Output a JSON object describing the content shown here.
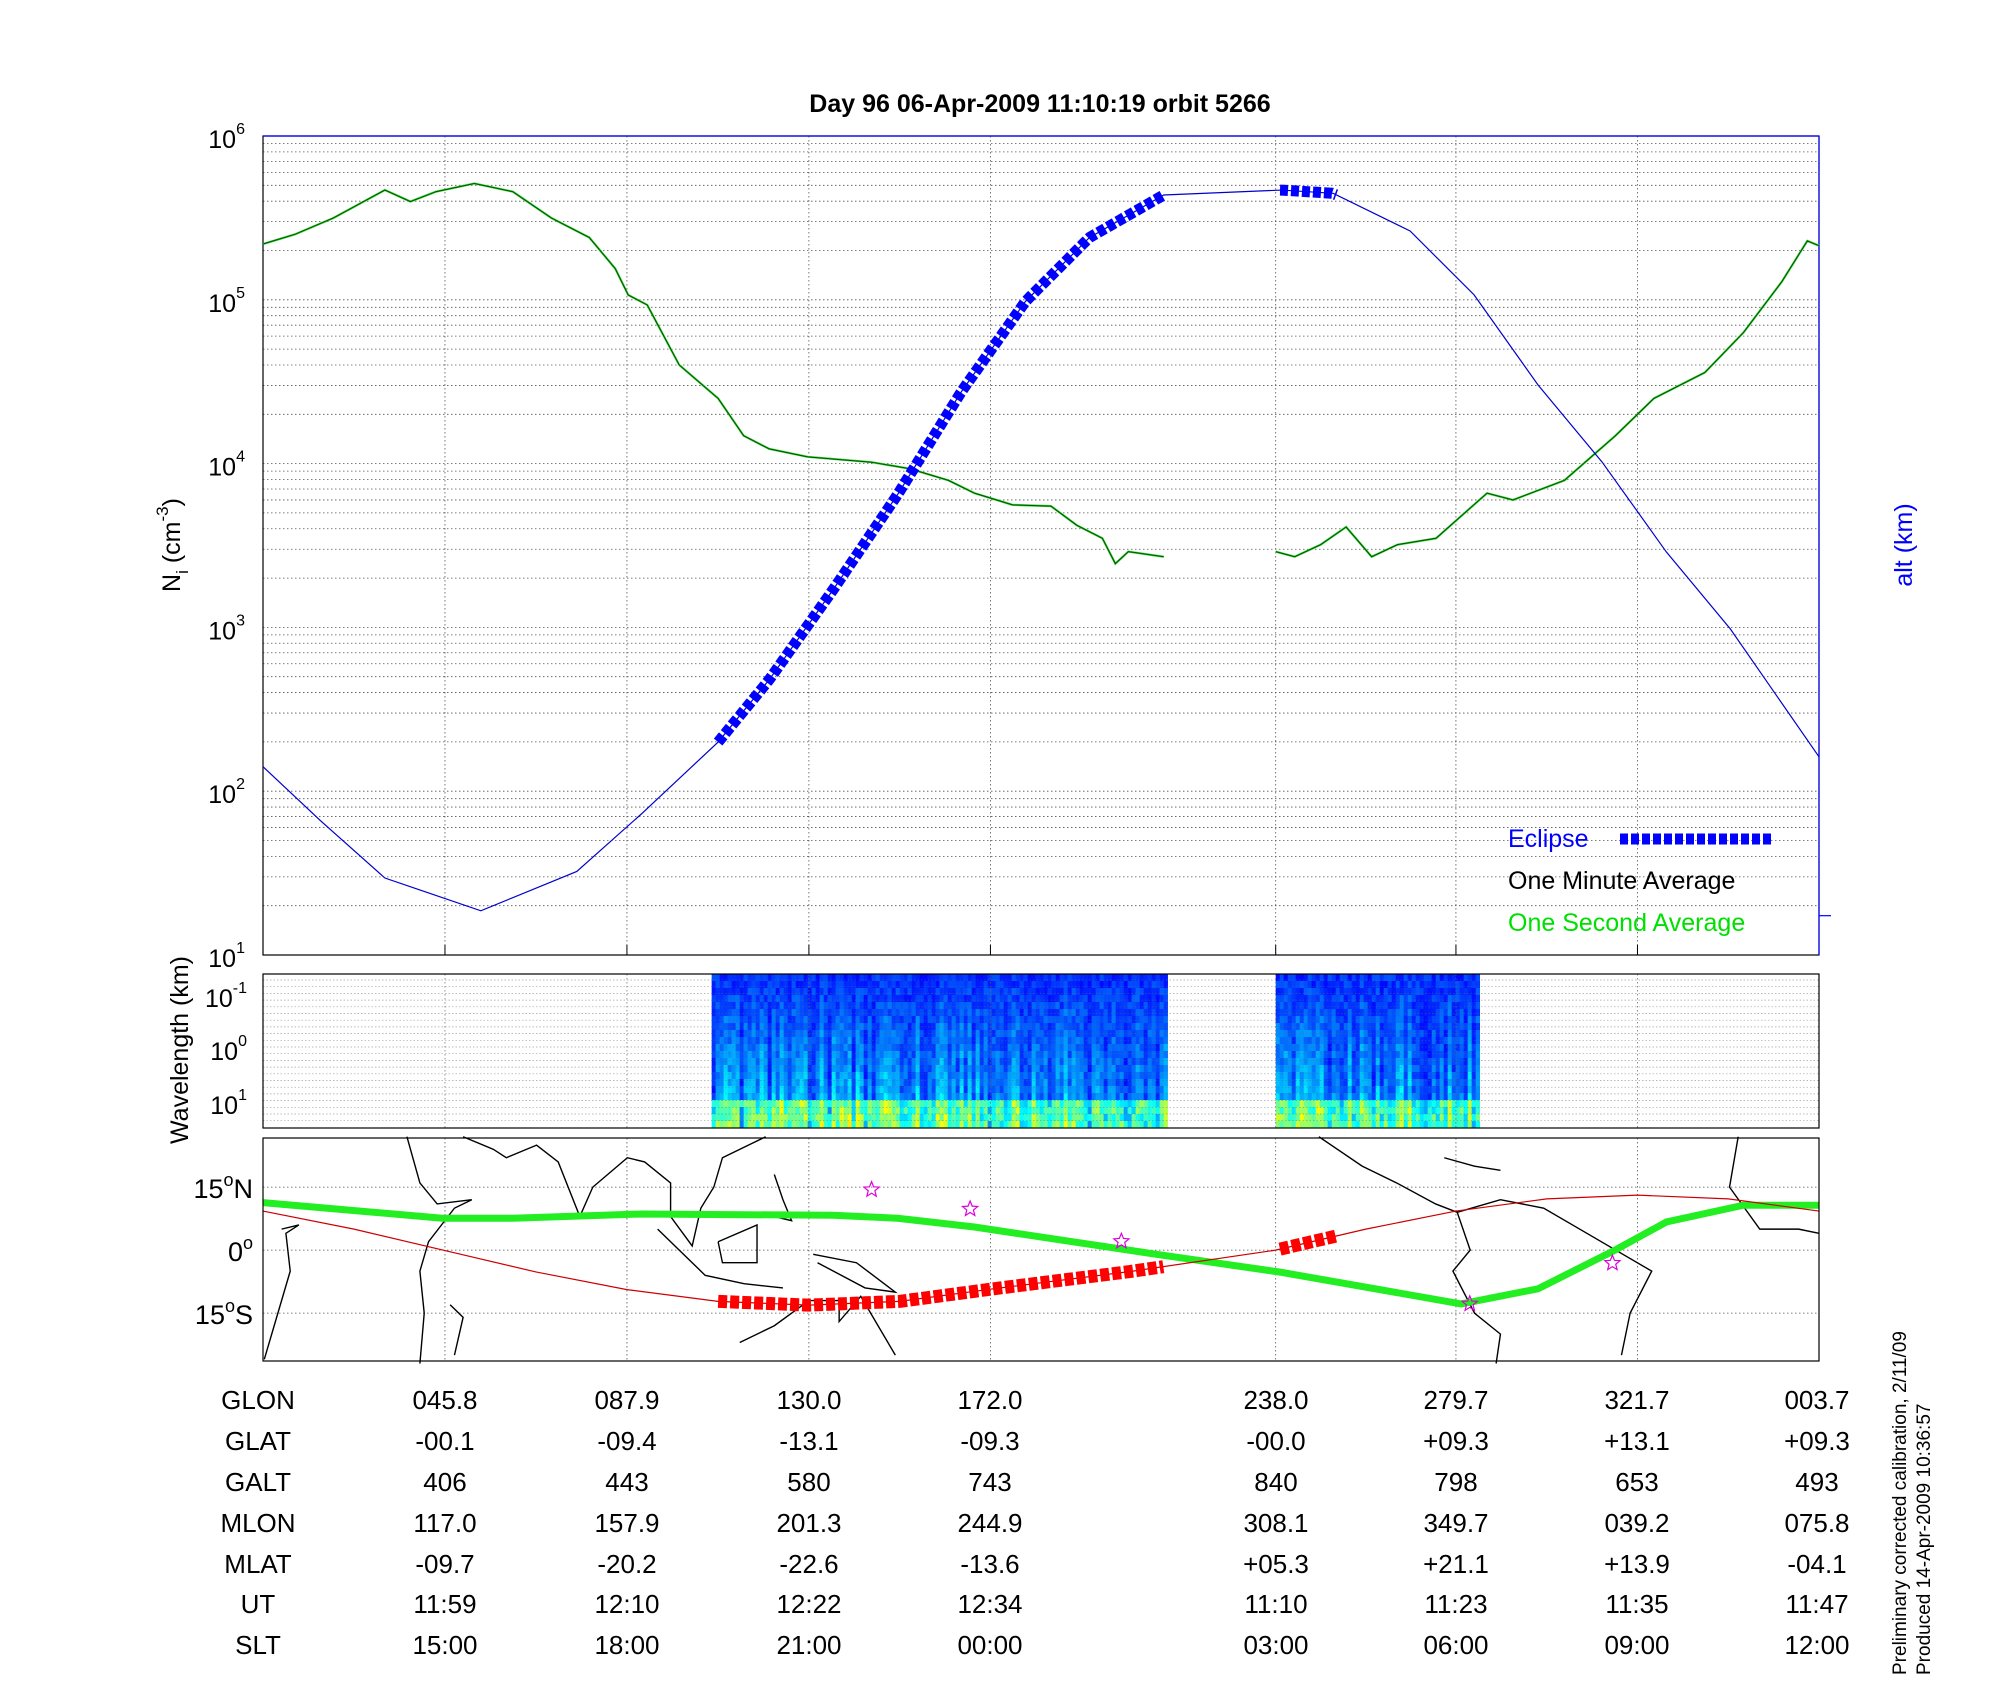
{
  "chart_data": [
    {
      "type": "line",
      "title": "Day 96  06-Apr-2009 11:10:19   orbit 5266",
      "xlabel": "",
      "xlim": [
        3.7,
        363.7
      ],
      "x_ticks": [
        45.8,
        87.9,
        130.0,
        172.0,
        238.0,
        279.7,
        321.7,
        363.7
      ],
      "ylabel_left": "N",
      "ylabel_left_sub": "i",
      "ylabel_left_unit": "(cm",
      "ylabel_left_unit_exp": "-3",
      "ylabel_left_close": ")",
      "ylabel_right": "alt (km)",
      "yscale_left": "log",
      "ylim_left": [
        10,
        1000000
      ],
      "y_ticks_left": [
        {
          "base": "10",
          "exp": "1"
        },
        {
          "base": "10",
          "exp": "2"
        },
        {
          "base": "10",
          "exp": "3"
        },
        {
          "base": "10",
          "exp": "4"
        },
        {
          "base": "10",
          "exp": "5"
        },
        {
          "base": "10",
          "exp": "6"
        }
      ],
      "ylim_right": [
        376,
        876
      ],
      "y_ticks_right": [
        400,
        450,
        500,
        550,
        600,
        650,
        700,
        750,
        800,
        850
      ],
      "grid": true,
      "legend_placement": "bottom-right",
      "legend": [
        {
          "label": "Eclipse",
          "color": "#0000ff"
        },
        {
          "label": "One Minute Average",
          "color": "#000000"
        },
        {
          "label": "One Second Average",
          "color": "#00e000"
        }
      ],
      "series": [
        {
          "key": "density",
          "color": "#0a6a0a",
          "segments": [
            {
              "x": [
                3.7,
                11.1,
                20.0,
                31.9,
                37.8,
                43.7,
                52.6,
                61.5,
                70.4,
                79.2,
                85.2,
                88.2,
                92.6,
                100.0,
                109.0,
                114.9,
                120.8,
                129.7,
                144.5,
                153.4,
                162.3,
                168.3,
                177.1,
                186.0,
                192.0,
                197.9,
                200.9,
                203.9,
                212.1
              ],
              "y": [
                219000,
                251000,
                316000,
                468000,
                398000,
                457000,
                513000,
                457000,
                316000,
                240000,
                155000,
                107000,
                93000,
                40000,
                25000,
                14800,
                12300,
                11000,
                10200,
                9300,
                7900,
                6600,
                5600,
                5500,
                4200,
                3500,
                2450,
                2900,
                2700
              ]
            },
            {
              "x": [
                238.0,
                242.4,
                248.4,
                254.3,
                260.2,
                266.2,
                275.1,
                286.9,
                292.9,
                304.8,
                316.6,
                325.5,
                337.3,
                346.2,
                355.1,
                361.0,
                363.7
              ],
              "y": [
                2900,
                2700,
                3200,
                4100,
                2700,
                3200,
                3500,
                6600,
                6000,
                7900,
                14800,
                25000,
                36000,
                63000,
                129000,
                229000,
                214000
              ]
            }
          ]
        },
        {
          "key": "altitude",
          "axis": "right",
          "color": "#0000cc",
          "x": [
            3.7,
            17.0,
            31.9,
            54.1,
            76.3,
            91.2,
            109.0,
            120.8,
            135.6,
            150.5,
            165.3,
            180.1,
            194.9,
            212.1,
            239.4,
            251.3,
            269.1,
            283.9,
            298.7,
            313.5,
            328.4,
            343.2,
            363.7
          ],
          "y": [
            491,
            458,
            423,
            403,
            427,
            462,
            506,
            544,
            599,
            657,
            720,
            775,
            814,
            840,
            843,
            841,
            818,
            779,
            724,
            677,
            622,
            575,
            497
          ]
        }
      ],
      "eclipse_ranges": [
        [
          109.0,
          212.1
        ],
        [
          239.0,
          252.5
        ]
      ]
    },
    {
      "type": "heatmap",
      "ylabel": "Wavelength (km)",
      "y_ticks": [
        {
          "base": "10",
          "exp": "-1"
        },
        {
          "base": "10",
          "exp": "0"
        },
        {
          "base": "10",
          "exp": "1"
        }
      ],
      "yscale": "log",
      "data_ranges": [
        [
          107.5,
          212.7
        ],
        [
          238.0,
          284.8
        ]
      ],
      "colormap": "jet"
    },
    {
      "type": "line",
      "ylim": [
        -26.4,
        26.7
      ],
      "y_ticks": [
        {
          "value": 15,
          "label": "15",
          "hemi": "N"
        },
        {
          "value": 0,
          "label": "0",
          "hemi": ""
        },
        {
          "value": -15,
          "label": "15",
          "hemi": "S"
        }
      ],
      "degree_symbol": "o",
      "magnetic_equator": {
        "color": "#22ee22",
        "x": [
          3.7,
          45.2,
          61.5,
          91.2,
          135.6,
          150.5,
          168.3,
          209.8,
          239.4,
          280.9,
          298.7,
          316.5,
          328.4,
          346.2,
          363.7
        ],
        "y": [
          11.3,
          7.6,
          7.6,
          8.6,
          8.3,
          7.6,
          5.5,
          -0.9,
          -5.3,
          -12.8,
          -9.2,
          0,
          6.7,
          10.7,
          10.7
        ]
      },
      "orbit_track": {
        "color": "#cc0000",
        "x": [
          3.7,
          24.75,
          45.8,
          66.85,
          87.9,
          108.95,
          130.0,
          151.0,
          172.0,
          205.0,
          238.0,
          258.85,
          279.7,
          300.7,
          321.7,
          342.7,
          363.7
        ],
        "y": [
          9.3,
          5.0,
          -0.1,
          -5.2,
          -9.4,
          -12.2,
          -13.1,
          -12.2,
          -9.3,
          -5.0,
          0.0,
          5.0,
          9.3,
          12.2,
          13.1,
          12.2,
          9.3
        ]
      },
      "eclipse_color": "#ff0000",
      "stars": {
        "color": "#dd00dd",
        "x": [
          144.5,
          167.3,
          202.3,
          282.9,
          315.9
        ],
        "y": [
          14.4,
          9.8,
          2.1,
          -12.8,
          -3.1
        ]
      }
    }
  ],
  "table": {
    "rows": [
      {
        "label": "GLON",
        "values": [
          "045.8",
          "087.9",
          "130.0",
          "172.0",
          "238.0",
          "279.7",
          "321.7",
          "003.7"
        ]
      },
      {
        "label": "GLAT",
        "values": [
          "-00.1",
          "-09.4",
          "-13.1",
          "-09.3",
          "-00.0",
          "+09.3",
          "+13.1",
          "+09.3"
        ]
      },
      {
        "label": "GALT",
        "values": [
          "406",
          "443",
          "580",
          "743",
          "840",
          "798",
          "653",
          "493"
        ]
      },
      {
        "label": "MLON",
        "values": [
          "117.0",
          "157.9",
          "201.3",
          "244.9",
          "308.1",
          "349.7",
          "039.2",
          "075.8"
        ]
      },
      {
        "label": "MLAT",
        "values": [
          "-09.7",
          "-20.2",
          "-22.6",
          "-13.6",
          "+05.3",
          "+21.1",
          "+13.9",
          "-04.1"
        ]
      },
      {
        "label": "UT",
        "values": [
          "11:59",
          "12:10",
          "12:22",
          "12:34",
          "11:10",
          "11:23",
          "11:35",
          "11:47"
        ]
      },
      {
        "label": "SLT",
        "values": [
          "15:00",
          "18:00",
          "21:00",
          "00:00",
          "03:00",
          "06:00",
          "09:00",
          "12:00"
        ]
      }
    ]
  },
  "footer": {
    "calibration_note": "Preliminary corrected calibration, 2/11/09",
    "produced_note": "Produced 14-Apr-2009 10:36:57"
  }
}
